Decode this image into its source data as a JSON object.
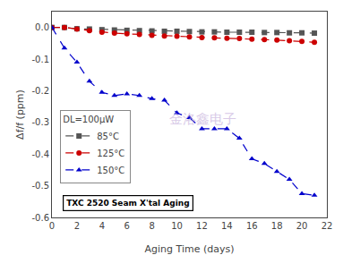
{
  "chart_data": {
    "type": "line",
    "x_label": "Aging Time (days)",
    "y_label": "Δf/f (ppm)",
    "xlim": [
      0,
      22
    ],
    "ylim": [
      -0.6,
      0.05
    ],
    "xticks": [
      0,
      2,
      4,
      6,
      8,
      10,
      12,
      14,
      16,
      18,
      20,
      22
    ],
    "yticks": [
      0.0,
      -0.1,
      -0.2,
      -0.3,
      -0.4,
      -0.5,
      -0.6
    ],
    "grid": false,
    "legend": "upper left",
    "legend_title": "DL=100μW",
    "annotations": [
      "TXC 2520 Seam X'tal Aging",
      "金洛鑫电子"
    ],
    "x": [
      0,
      1,
      2,
      3,
      4,
      5,
      6,
      7,
      8,
      9,
      10,
      11,
      12,
      13,
      14,
      15,
      16,
      17,
      18,
      19,
      20,
      21
    ],
    "series": [
      {
        "name": "85°C",
        "color": "#555555",
        "marker": "square",
        "line_style": "dashed",
        "values": [
          0.0,
          0.0,
          -0.004,
          -0.005,
          -0.007,
          -0.008,
          -0.009,
          -0.01,
          -0.011,
          -0.012,
          -0.012,
          -0.013,
          -0.014,
          -0.014,
          -0.015,
          -0.015,
          -0.015,
          -0.016,
          -0.016,
          -0.017,
          -0.017,
          -0.018
        ]
      },
      {
        "name": "125°C",
        "color": "#cc0000",
        "marker": "circle",
        "line_style": "dashed",
        "values": [
          0.0,
          0.0,
          -0.005,
          -0.01,
          -0.015,
          -0.018,
          -0.02,
          -0.022,
          -0.025,
          -0.027,
          -0.028,
          -0.03,
          -0.032,
          -0.033,
          -0.034,
          -0.035,
          -0.037,
          -0.038,
          -0.04,
          -0.042,
          -0.044,
          -0.047
        ]
      },
      {
        "name": "150°C",
        "color": "#0000cc",
        "marker": "triangle-up",
        "line_style": "dashed",
        "values": [
          0.0,
          -0.065,
          -0.11,
          -0.17,
          -0.205,
          -0.215,
          -0.21,
          -0.215,
          -0.225,
          -0.23,
          -0.27,
          -0.285,
          -0.32,
          -0.32,
          -0.32,
          -0.35,
          -0.415,
          -0.43,
          -0.455,
          -0.48,
          -0.525,
          -0.53
        ]
      }
    ]
  }
}
